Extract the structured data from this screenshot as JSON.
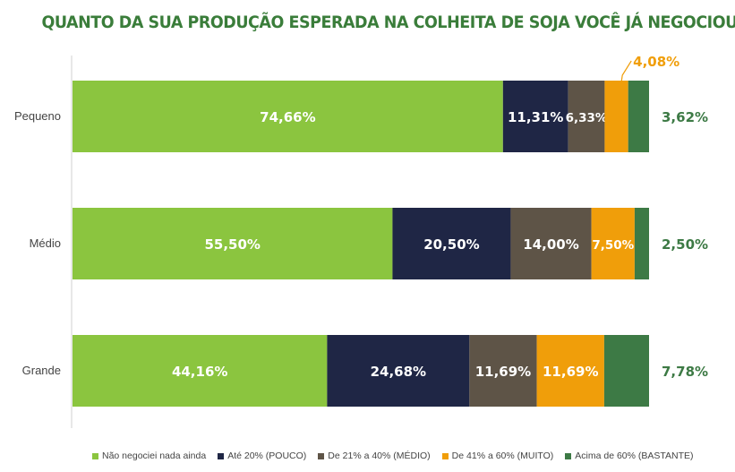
{
  "chart_data": {
    "type": "bar",
    "orientation": "horizontal",
    "stacked": true,
    "title": "QUANTO DA SUA PRODUÇÃO ESPERADA NA COLHEITA DE SOJA VOCÊ JÁ NEGOCIOU?",
    "categories": [
      "Pequeno",
      "Médio",
      "Grande"
    ],
    "series": [
      {
        "name": "Não negociei nada ainda",
        "color": "#8bc53f",
        "values": [
          74.66,
          55.5,
          44.16
        ],
        "labels": [
          "74,66%",
          "55,50%",
          "44,16%"
        ]
      },
      {
        "name": "Até 20% (POUCO)",
        "color": "#1f2645",
        "values": [
          11.31,
          20.5,
          24.68
        ],
        "labels": [
          "11,31%",
          "20,50%",
          "24,68%"
        ]
      },
      {
        "name": "De 21% a 40% (MÉDIO)",
        "color": "#5e5447",
        "values": [
          6.33,
          14.0,
          11.69
        ],
        "labels": [
          "6,33%",
          "14,00%",
          "11,69%"
        ]
      },
      {
        "name": "De 41% a 60% (MUITO)",
        "color": "#f09e0a",
        "values": [
          4.08,
          7.5,
          11.69
        ],
        "labels": [
          "4,08%",
          "7,50%",
          "11,69%"
        ]
      },
      {
        "name": "Acima de 60% (BASTANTE)",
        "color": "#3d7a45",
        "values": [
          3.62,
          2.5,
          7.78
        ],
        "labels": [
          "3,62%",
          "2,50%",
          "7,78%"
        ]
      }
    ],
    "xlim": [
      0,
      100
    ],
    "grid": false,
    "legend_position": "bottom"
  }
}
